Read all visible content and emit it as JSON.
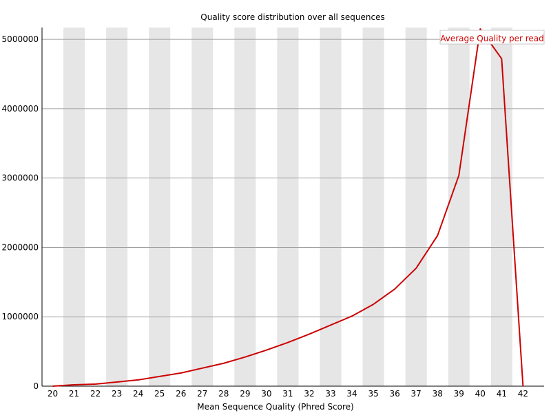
{
  "chart_data": {
    "type": "line",
    "title": "Quality score distribution over all sequences",
    "xlabel": "Mean Sequence Quality (Phred Score)",
    "ylabel": "",
    "x": [
      20,
      21,
      22,
      23,
      24,
      25,
      26,
      27,
      28,
      29,
      30,
      31,
      32,
      33,
      34,
      35,
      36,
      37,
      38,
      39,
      40,
      41,
      42
    ],
    "x_tick_labels": [
      "20",
      "21",
      "22",
      "23",
      "24",
      "25",
      "26",
      "27",
      "28",
      "29",
      "30",
      "31",
      "32",
      "33",
      "34",
      "35",
      "36",
      "37",
      "38",
      "39",
      "40",
      "41",
      "42"
    ],
    "y_tick_values": [
      0,
      1000000,
      2000000,
      3000000,
      4000000,
      5000000
    ],
    "y_tick_labels": [
      "0",
      "1000000",
      "2000000",
      "3000000",
      "4000000",
      "5000000"
    ],
    "ylim": [
      0,
      5170000
    ],
    "xlim": [
      20,
      42
    ],
    "grid": true,
    "alternating_band_color": "#e6e6e6",
    "series": [
      {
        "name": "Average Quality per read",
        "color": "#cc0000",
        "values": [
          0,
          20000,
          30000,
          60000,
          90000,
          140000,
          190000,
          260000,
          330000,
          420000,
          520000,
          630000,
          750000,
          880000,
          1010000,
          1180000,
          1400000,
          1700000,
          2170000,
          3040000,
          5150000,
          4720000,
          0
        ]
      }
    ],
    "legend_position": "top-right"
  }
}
